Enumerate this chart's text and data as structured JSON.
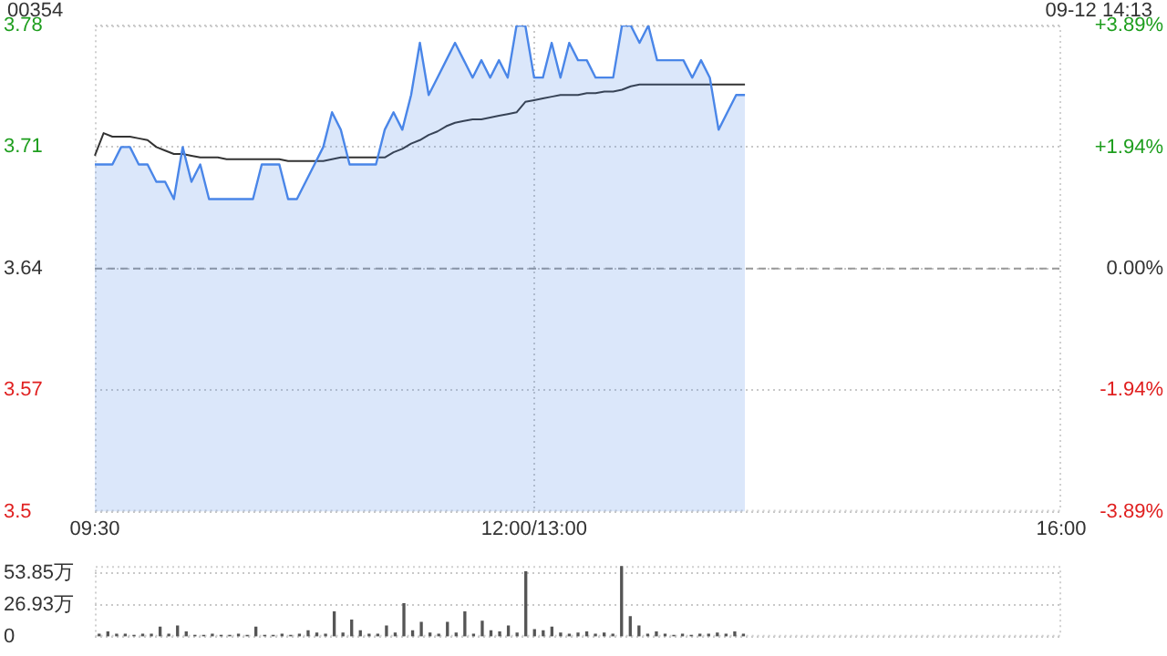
{
  "chart_data": [
    {
      "type": "line",
      "title": "00354",
      "annotations": [
        "09-12 14:13"
      ],
      "categories": [
        "09:30",
        null,
        null,
        null,
        null,
        null,
        null,
        null,
        null,
        null,
        null,
        null,
        null,
        null,
        null,
        null,
        null,
        null,
        null,
        null,
        null,
        null,
        null,
        null,
        null,
        null,
        null,
        null,
        null,
        null,
        null,
        null,
        null,
        null,
        null,
        null,
        null,
        null,
        null,
        null,
        null,
        null,
        null,
        null,
        null,
        null,
        null,
        null,
        null,
        null,
        "12:00/13:00",
        null,
        null,
        null,
        null,
        null,
        null,
        null,
        null,
        null,
        null,
        null,
        null,
        null,
        null,
        null,
        null,
        null,
        null,
        null,
        null,
        null,
        null,
        null,
        null,
        null,
        null,
        null,
        null,
        null,
        null,
        null,
        null,
        null,
        null,
        null,
        null,
        null,
        null,
        null,
        null,
        null,
        null,
        null,
        null,
        null,
        null,
        null,
        null,
        null,
        null,
        null,
        null,
        null,
        null,
        null,
        null,
        null,
        null,
        null,
        "16:00"
      ],
      "ylim": [
        3.5,
        3.78
      ],
      "yticks": [
        3.5,
        3.57,
        3.64,
        3.71,
        3.78
      ],
      "y2lim": [
        -3.89,
        3.89
      ],
      "y2ticks": [
        {
          "value": -3.89,
          "label": "-3.89%"
        },
        {
          "value": -1.94,
          "label": "-1.94%"
        },
        {
          "value": 0,
          "label": "0.00%"
        },
        {
          "value": 1.94,
          "label": "+1.94%"
        },
        {
          "value": 3.89,
          "label": "+3.89%"
        }
      ],
      "grid": true,
      "ref_lines": [
        {
          "axis": "y",
          "value": 3.64,
          "line_style": "dashed",
          "color": "#999999"
        }
      ],
      "series": [
        {
          "type": "area",
          "color": "#4a86e8",
          "values": [
            3.7,
            3.7,
            3.7,
            3.71,
            3.71,
            3.7,
            3.7,
            3.69,
            3.69,
            3.68,
            3.71,
            3.69,
            3.7,
            3.68,
            3.68,
            3.68,
            3.68,
            3.68,
            3.68,
            3.7,
            3.7,
            3.7,
            3.68,
            3.68,
            3.69,
            3.7,
            3.71,
            3.73,
            3.72,
            3.7,
            3.7,
            3.7,
            3.7,
            3.72,
            3.73,
            3.72,
            3.74,
            3.77,
            3.74,
            3.75,
            3.76,
            3.77,
            3.76,
            3.75,
            3.76,
            3.75,
            3.76,
            3.75,
            3.78,
            3.78,
            3.75,
            3.75,
            3.77,
            3.75,
            3.77,
            3.76,
            3.76,
            3.75,
            3.75,
            3.75,
            3.78,
            3.78,
            3.77,
            3.78,
            3.76,
            3.76,
            3.76,
            3.76,
            3.75,
            3.76,
            3.75,
            3.72,
            3.73,
            3.74,
            3.74,
            null,
            null,
            null,
            null,
            null,
            null,
            null,
            null,
            null,
            null,
            null,
            null,
            null,
            null,
            null,
            null,
            null,
            null,
            null,
            null,
            null,
            null,
            null,
            null,
            null,
            null,
            null,
            null,
            null,
            null,
            null,
            null,
            null,
            null,
            null,
            null
          ]
        },
        {
          "type": "line",
          "color": "#333333",
          "values": [
            3.705,
            3.718,
            3.716,
            3.716,
            3.716,
            3.715,
            3.714,
            3.71,
            3.708,
            3.706,
            3.706,
            3.705,
            3.704,
            3.704,
            3.704,
            3.703,
            3.703,
            3.703,
            3.703,
            3.703,
            3.703,
            3.703,
            3.702,
            3.702,
            3.702,
            3.702,
            3.702,
            3.703,
            3.704,
            3.704,
            3.704,
            3.704,
            3.704,
            3.704,
            3.707,
            3.709,
            3.712,
            3.714,
            3.717,
            3.719,
            3.722,
            3.724,
            3.725,
            3.726,
            3.726,
            3.727,
            3.728,
            3.729,
            3.73,
            3.736,
            3.737,
            3.738,
            3.739,
            3.74,
            3.74,
            3.74,
            3.741,
            3.741,
            3.742,
            3.742,
            3.743,
            3.745,
            3.746,
            3.746,
            3.746,
            3.746,
            3.746,
            3.746,
            3.746,
            3.746,
            3.746,
            3.746,
            3.746,
            3.746,
            3.746,
            null,
            null,
            null,
            null,
            null,
            null,
            null,
            null,
            null,
            null,
            null,
            null,
            null,
            null,
            null,
            null,
            null,
            null,
            null,
            null,
            null,
            null,
            null,
            null,
            null,
            null,
            null,
            null,
            null,
            null,
            null,
            null,
            null,
            null,
            null,
            null
          ]
        }
      ]
    },
    {
      "type": "bar",
      "color": "#555555",
      "categories": [
        null,
        null,
        null,
        null,
        null,
        null,
        null,
        null,
        null,
        null,
        null,
        null,
        null,
        null,
        null,
        null,
        null,
        null,
        null,
        null,
        null,
        null,
        null,
        null,
        null,
        null,
        null,
        null,
        null,
        null,
        null,
        null,
        null,
        null,
        null,
        null,
        null,
        null,
        null,
        null,
        null,
        null,
        null,
        null,
        null,
        null,
        null,
        null,
        null,
        null,
        null,
        null,
        null,
        null,
        null,
        null,
        null,
        null,
        null,
        null,
        null,
        null,
        null,
        null,
        null,
        null,
        null,
        null,
        null,
        null,
        null,
        null,
        null,
        null,
        null,
        null,
        null,
        null,
        null,
        null,
        null,
        null,
        null,
        null,
        null,
        null,
        null,
        null,
        null,
        null,
        null,
        null,
        null,
        null,
        null,
        null,
        null,
        null,
        null,
        null,
        null,
        null,
        null,
        null,
        null,
        null,
        null,
        null,
        null,
        null,
        null
      ],
      "ylim": [
        0,
        60
      ],
      "yticks": [
        {
          "value": 0,
          "label": "0"
        },
        {
          "value": 26.93,
          "label": "26.93万"
        },
        {
          "value": 53.85,
          "label": "53.85万"
        }
      ],
      "tick_labels": "y",
      "grid": "y",
      "values": [
        2,
        4,
        2,
        2,
        1,
        2,
        2,
        8,
        2,
        9,
        4,
        1,
        1,
        2,
        1,
        1,
        2,
        1,
        8,
        1,
        1,
        2,
        1,
        2,
        5,
        3,
        2,
        21,
        3,
        14,
        5,
        2,
        2,
        9,
        3,
        28,
        5,
        12,
        3,
        2,
        12,
        3,
        21,
        2,
        13,
        5,
        4,
        9,
        3,
        55,
        6,
        5,
        8,
        3,
        2,
        3,
        4,
        2,
        3,
        2,
        60,
        17,
        9,
        2,
        4,
        2,
        1,
        2,
        1,
        2,
        2,
        3,
        2,
        4,
        2,
        null,
        null,
        null,
        null,
        null,
        null,
        null,
        null,
        null,
        null,
        null,
        null,
        null,
        null,
        null,
        null,
        null,
        null,
        null,
        null,
        null,
        null,
        null,
        null,
        null,
        null,
        null,
        null,
        null,
        null,
        null,
        null,
        null,
        null,
        null,
        null
      ]
    }
  ]
}
